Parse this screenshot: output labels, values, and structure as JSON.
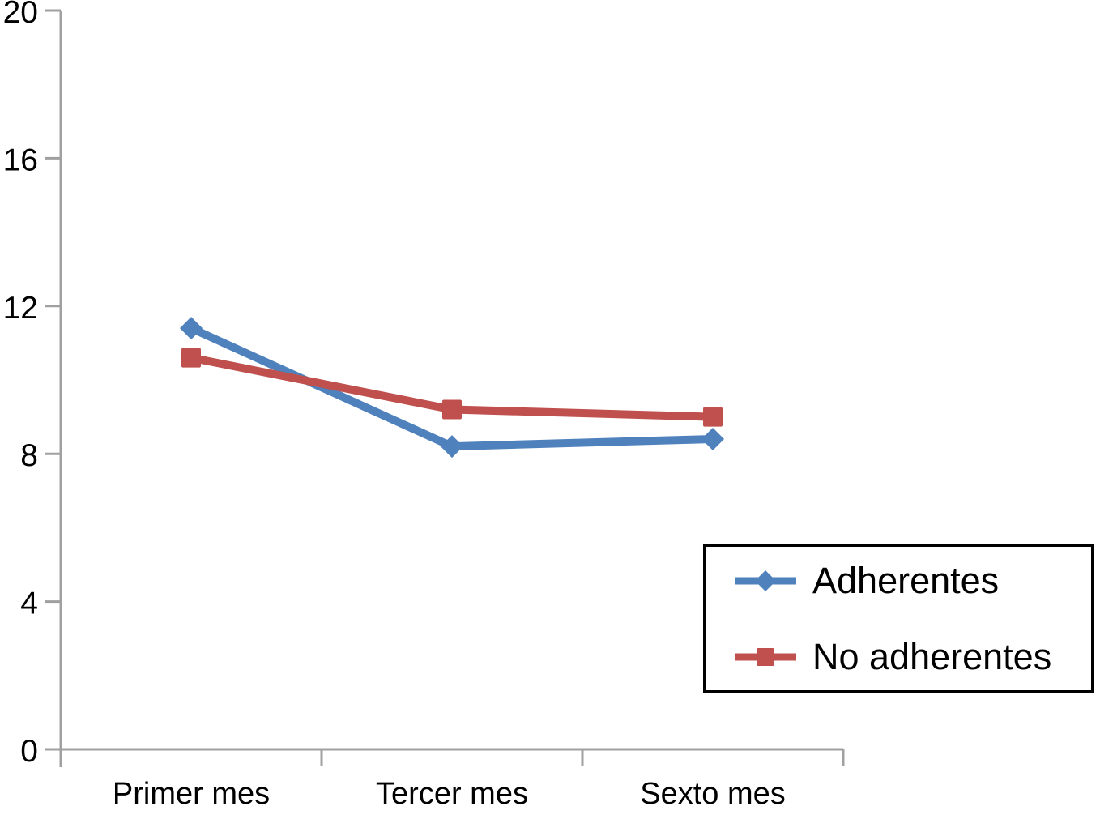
{
  "chart_data": {
    "type": "line",
    "title": "",
    "xlabel": "",
    "ylabel": "",
    "categories": [
      "Primer mes",
      "Tercer mes",
      "Sexto mes"
    ],
    "series": [
      {
        "name": "Adherentes",
        "values": [
          11.4,
          8.2,
          8.4
        ],
        "color": "#4F81BD",
        "marker": "diamond"
      },
      {
        "name": "No adherentes",
        "values": [
          10.6,
          9.2,
          9.0
        ],
        "color": "#C0504D",
        "marker": "square"
      }
    ],
    "ylim": [
      0,
      20
    ],
    "yticks": [
      0,
      4,
      8,
      12,
      16,
      20
    ],
    "grid": false,
    "legend_position": "bottom-right",
    "axis_color": "#A0A0A0",
    "text_color": "#000000",
    "background": "#FFFFFF"
  }
}
